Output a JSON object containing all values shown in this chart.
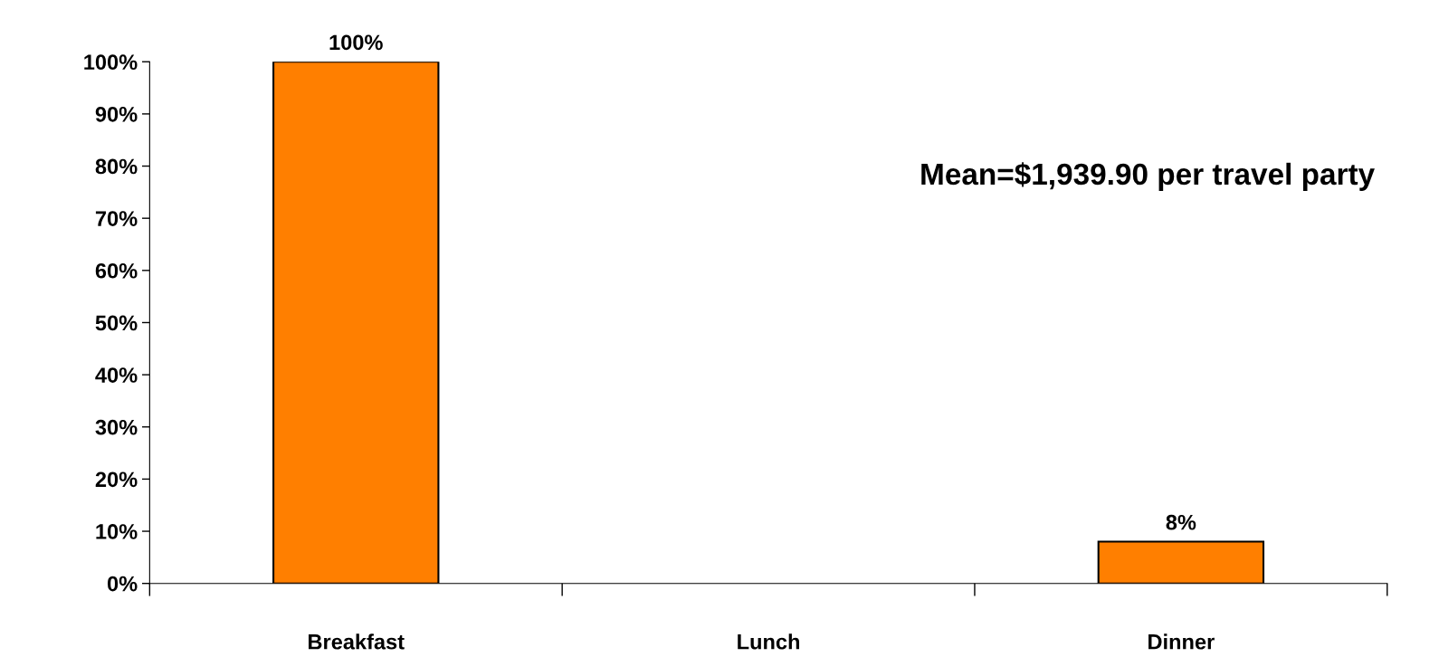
{
  "chart_data": {
    "type": "bar",
    "categories": [
      "Breakfast",
      "Lunch",
      "Dinner"
    ],
    "values": [
      100,
      null,
      8
    ],
    "value_labels": [
      "100%",
      null,
      "8%"
    ],
    "color": "#ff7f00",
    "ylim": [
      0,
      100
    ],
    "yticks": [
      {
        "value": 0,
        "label": "0%"
      },
      {
        "value": 10,
        "label": "10%"
      },
      {
        "value": 20,
        "label": "20%"
      },
      {
        "value": 30,
        "label": "30%"
      },
      {
        "value": 40,
        "label": "40%"
      },
      {
        "value": 50,
        "label": "50%"
      },
      {
        "value": 60,
        "label": "60%"
      },
      {
        "value": 70,
        "label": "70%"
      },
      {
        "value": 80,
        "label": "80%"
      },
      {
        "value": 90,
        "label": "90%"
      },
      {
        "value": 100,
        "label": "100%"
      }
    ],
    "annotations": [
      "Mean=$1,939.90 per travel party"
    ],
    "grid": false,
    "legend": false
  }
}
